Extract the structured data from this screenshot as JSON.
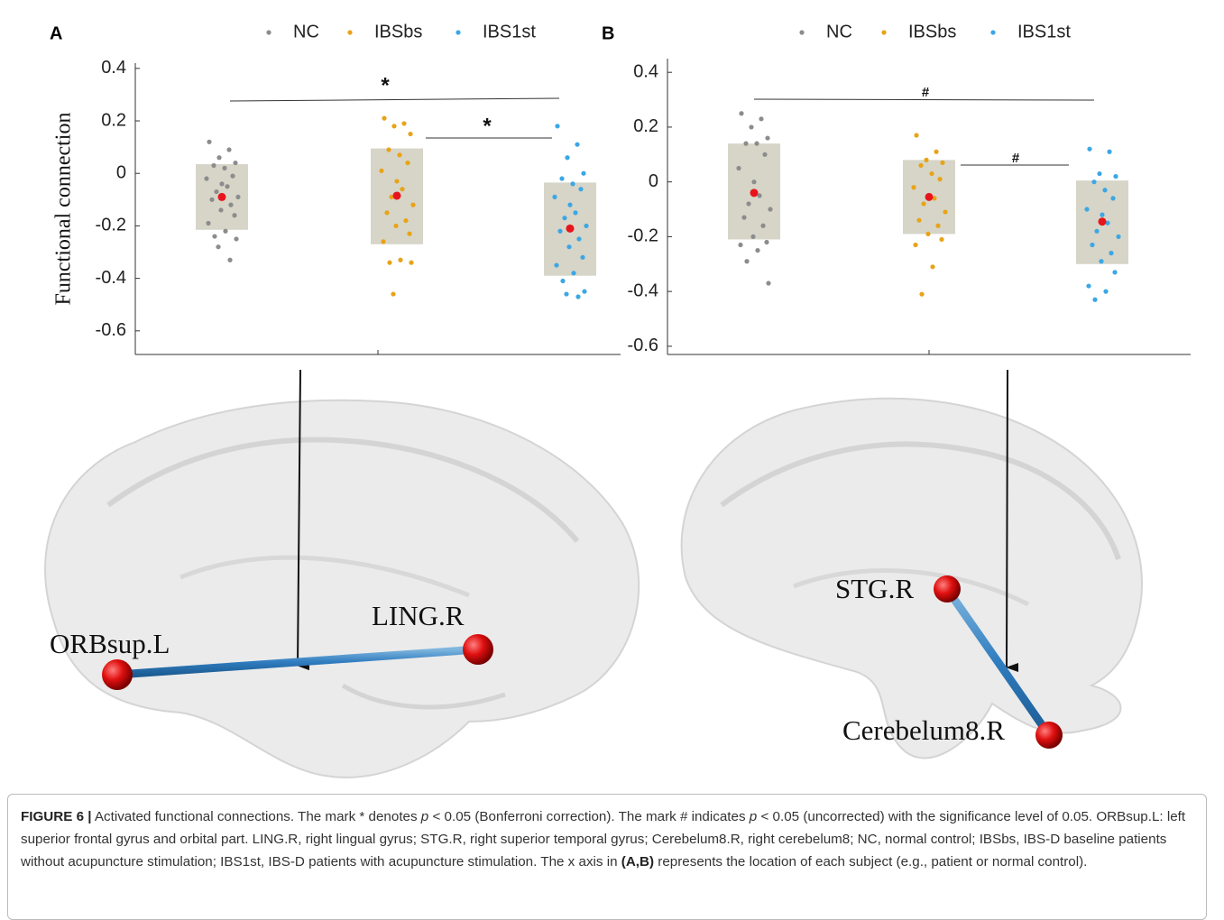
{
  "panels": [
    "A",
    "B"
  ],
  "chart_data": [
    {
      "type": "box",
      "ylabel": "Functional connection",
      "ylim": [
        -0.69,
        0.42
      ],
      "yticks": [
        0.4,
        0.2,
        0,
        -0.2,
        -0.4,
        -0.6
      ],
      "mean_color": "#e8141b",
      "box_color": "#d6d5c8",
      "series": [
        {
          "name": "NC",
          "color": "#8c8c8c",
          "box": [
            -0.215,
            0.035
          ],
          "mean": -0.09,
          "values": [
            0.12,
            0.09,
            0.06,
            0.04,
            0.03,
            0.02,
            -0.01,
            -0.02,
            -0.04,
            -0.05,
            -0.07,
            -0.09,
            -0.1,
            -0.12,
            -0.14,
            -0.16,
            -0.19,
            -0.22,
            -0.24,
            -0.25,
            -0.28,
            -0.33
          ]
        },
        {
          "name": "IBSbs",
          "color": "#e8a317",
          "box": [
            -0.27,
            0.095
          ],
          "mean": -0.085,
          "values": [
            0.21,
            0.19,
            0.18,
            0.15,
            0.09,
            0.07,
            0.04,
            0.01,
            -0.03,
            -0.06,
            -0.09,
            -0.12,
            -0.15,
            -0.18,
            -0.2,
            -0.23,
            -0.26,
            -0.33,
            -0.34,
            -0.34,
            -0.46
          ]
        },
        {
          "name": "IBS1st",
          "color": "#3ba7e5",
          "box": [
            -0.39,
            -0.035
          ],
          "mean": -0.21,
          "values": [
            0.18,
            0.11,
            0.06,
            0,
            -0.02,
            -0.04,
            -0.06,
            -0.09,
            -0.12,
            -0.15,
            -0.17,
            -0.2,
            -0.22,
            -0.25,
            -0.28,
            -0.32,
            -0.35,
            -0.38,
            -0.41,
            -0.45,
            -0.46,
            -0.47
          ]
        }
      ],
      "annotations": [
        "*",
        "*"
      ]
    },
    {
      "type": "box",
      "ylim": [
        -0.63,
        0.45
      ],
      "yticks": [
        0.4,
        0.2,
        0,
        -0.2,
        -0.4,
        -0.6
      ],
      "mean_color": "#e8141b",
      "box_color": "#d6d5c8",
      "series": [
        {
          "name": "NC",
          "color": "#8c8c8c",
          "box": [
            -0.21,
            0.14
          ],
          "mean": -0.04,
          "values": [
            0.25,
            0.23,
            0.2,
            0.16,
            0.14,
            0.14,
            0.1,
            0.05,
            0,
            -0.05,
            -0.08,
            -0.1,
            -0.13,
            -0.16,
            -0.2,
            -0.22,
            -0.23,
            -0.25,
            -0.29,
            -0.37
          ]
        },
        {
          "name": "IBSbs",
          "color": "#e8a317",
          "box": [
            -0.19,
            0.08
          ],
          "mean": -0.055,
          "values": [
            0.17,
            0.11,
            0.08,
            0.07,
            0.06,
            0.03,
            0.01,
            -0.02,
            -0.05,
            -0.06,
            -0.08,
            -0.11,
            -0.14,
            -0.16,
            -0.19,
            -0.21,
            -0.23,
            -0.31,
            -0.41
          ]
        },
        {
          "name": "IBS1st",
          "color": "#3ba7e5",
          "box": [
            -0.3,
            0.005
          ],
          "mean": -0.145,
          "values": [
            0.12,
            0.11,
            0.03,
            0.02,
            0,
            -0.03,
            -0.06,
            -0.1,
            -0.12,
            -0.15,
            -0.18,
            -0.2,
            -0.23,
            -0.26,
            -0.29,
            -0.33,
            -0.38,
            -0.4,
            -0.43
          ]
        }
      ],
      "annotations": [
        "#",
        "#"
      ]
    }
  ],
  "brains": [
    {
      "nodes": [
        "ORBsup.L",
        "LING.R"
      ]
    },
    {
      "nodes": [
        "STG.R",
        "Cerebelum8.R"
      ]
    }
  ],
  "caption": {
    "parts": [
      "FIGURE 6 |",
      " Activated functional connections. The mark * denotes ",
      "p",
      " < 0.05 (Bonferroni correction). The mark # indicates ",
      "p",
      " < 0.05 (uncorrected) with the significance level of 0.05. ORBsup.L: left superior frontal gyrus and orbital part. LING.R, right lingual gyrus; STG.R, right superior temporal gyrus; Cerebelum8.R, right cerebelum8; NC, normal control; IBSbs, IBS-D baseline patients without acupuncture stimulation; IBS1st, IBS-D patients with acupuncture stimulation. The x axis in ",
      "(A,B)",
      " represents the location of each subject (e.g., patient or normal control)."
    ]
  }
}
